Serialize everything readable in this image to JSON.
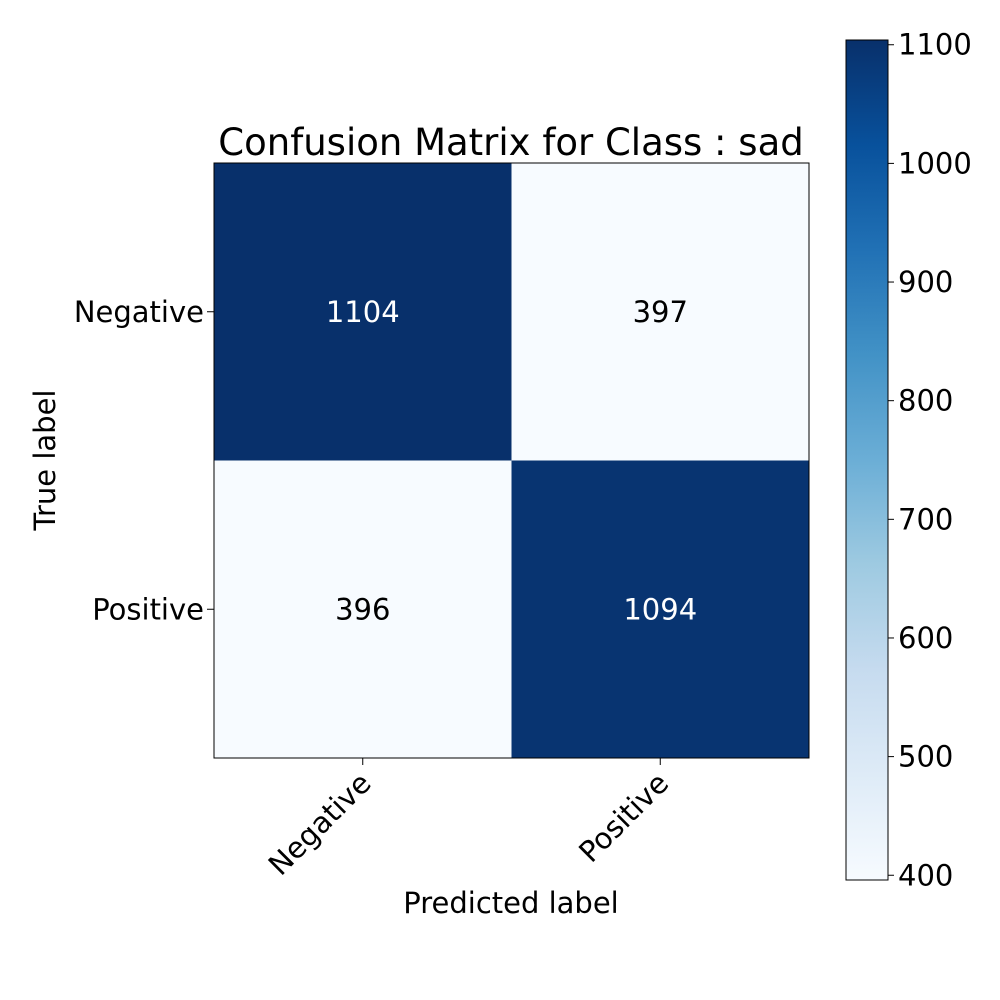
{
  "chart_data": {
    "type": "heatmap",
    "title": "Confusion Matrix for Class : sad",
    "xlabel": "Predicted label",
    "ylabel": "True label",
    "x_categories": [
      "Negative",
      "Positive"
    ],
    "y_categories": [
      "Negative",
      "Positive"
    ],
    "values": [
      [
        1104,
        397
      ],
      [
        396,
        1094
      ]
    ],
    "colormap": "Blues",
    "colorbar": {
      "min": 396,
      "max": 1104,
      "ticks": [
        400,
        500,
        600,
        700,
        800,
        900,
        1000,
        1100
      ]
    },
    "grid": false,
    "legend": "none"
  }
}
